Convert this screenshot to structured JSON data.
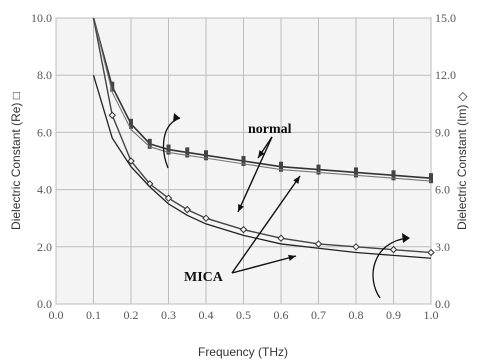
{
  "chart_data": {
    "type": "line",
    "xlabel": "Frequency (THz)",
    "ylabel_left": "Dielectric Constant (Re) □",
    "ylabel_right": "Dielectric Constant (Im) ◇",
    "xlim": [
      0.0,
      1.0
    ],
    "ylim_left": [
      0.0,
      10.0
    ],
    "ylim_right": [
      0.0,
      15.0
    ],
    "x_ticks": [
      "0.0",
      "0.1",
      "0.2",
      "0.3",
      "0.4",
      "0.5",
      "0.6",
      "0.7",
      "0.8",
      "0.9",
      "1.0"
    ],
    "y_left_ticks": [
      "0.0",
      "2.0",
      "4.0",
      "6.0",
      "8.0",
      "10.0"
    ],
    "y_right_ticks": [
      "0.0",
      "3.0",
      "6.0",
      "9.0",
      "12.0",
      "15.0"
    ],
    "grid": true,
    "annotations": [
      "normal",
      "MICA"
    ],
    "series": [
      {
        "axis": "left",
        "x": [
          0.1,
          0.15,
          0.2,
          0.25,
          0.3,
          0.35,
          0.4,
          0.5,
          0.6,
          0.7,
          0.8,
          0.9,
          1.0
        ],
        "values": [
          10.0,
          7.6,
          6.3,
          5.6,
          5.4,
          5.3,
          5.2,
          5.0,
          4.8,
          4.7,
          4.6,
          4.5,
          4.4
        ]
      },
      {
        "axis": "left",
        "x": [
          0.1,
          0.15,
          0.2,
          0.25,
          0.3,
          0.35,
          0.4,
          0.5,
          0.6,
          0.7,
          0.8,
          0.9,
          1.0
        ],
        "values": [
          10.0,
          7.4,
          6.1,
          5.5,
          5.3,
          5.2,
          5.1,
          4.9,
          4.7,
          4.6,
          4.5,
          4.4,
          4.3
        ]
      },
      {
        "axis": "left",
        "x": [
          0.1,
          0.15,
          0.2,
          0.25,
          0.3,
          0.35,
          0.4,
          0.5,
          0.6,
          0.7,
          0.8,
          0.9,
          1.0
        ],
        "values": [
          10.0,
          6.6,
          5.0,
          4.2,
          3.7,
          3.3,
          3.0,
          2.6,
          2.3,
          2.1,
          2.0,
          1.9,
          1.8
        ]
      },
      {
        "axis": "left",
        "x": [
          0.1,
          0.15,
          0.2,
          0.25,
          0.3,
          0.35,
          0.4,
          0.5,
          0.6,
          0.7,
          0.8,
          0.9,
          1.0
        ],
        "values": [
          8.0,
          5.8,
          4.8,
          4.1,
          3.5,
          3.1,
          2.8,
          2.4,
          2.1,
          1.95,
          1.8,
          1.7,
          1.6
        ]
      }
    ]
  }
}
